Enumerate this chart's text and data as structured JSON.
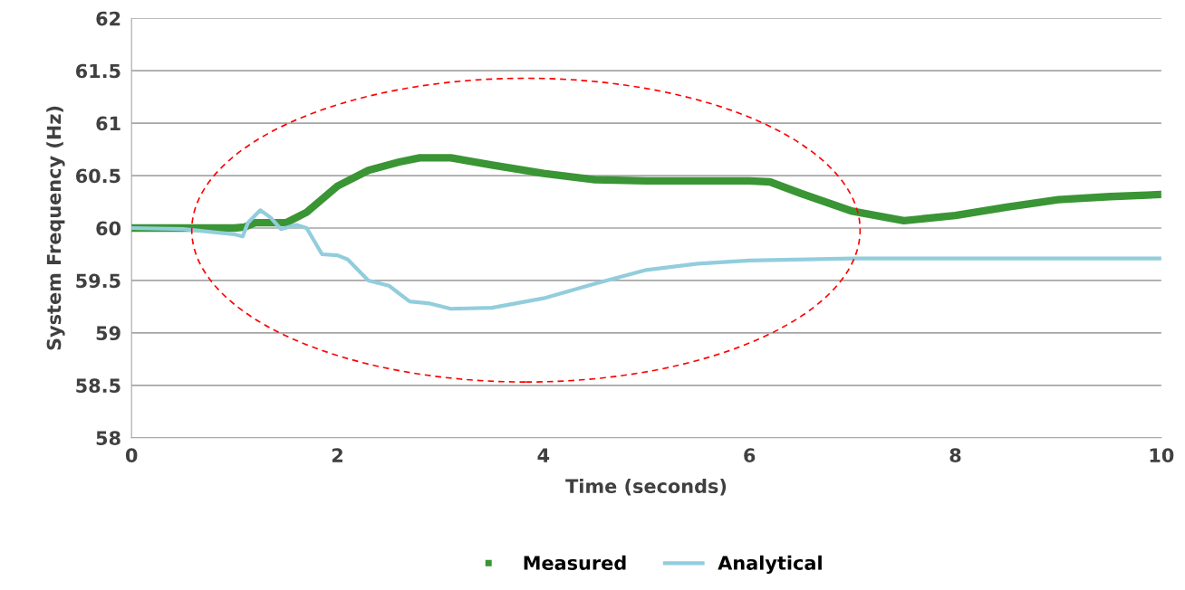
{
  "chart_data": {
    "type": "line",
    "xlabel": "Time (seconds)",
    "ylabel": "System Frequency (Hz)",
    "xlim": [
      0,
      10
    ],
    "xticks": [
      0,
      2,
      4,
      6,
      8,
      10
    ],
    "ylim": [
      58,
      62
    ],
    "yticks": [
      58,
      58.5,
      59,
      59.5,
      60,
      60.5,
      61,
      61.5,
      62
    ],
    "grid": "y",
    "legend": "bottom",
    "marker": "none",
    "line_style": "solid",
    "series": [
      {
        "name": "Measured",
        "color": "#3a9535",
        "x": [
          0,
          0.5,
          1.0,
          1.1,
          1.2,
          1.5,
          1.7,
          2.0,
          2.3,
          2.6,
          2.8,
          3.1,
          3.5,
          4.0,
          4.5,
          5.0,
          5.5,
          6.0,
          6.2,
          6.5,
          7.0,
          7.5,
          8.0,
          8.5,
          9.0,
          9.5,
          10
        ],
        "values": [
          60.0,
          60.0,
          60.0,
          60.01,
          60.05,
          60.05,
          60.15,
          60.4,
          60.55,
          60.63,
          60.67,
          60.67,
          60.6,
          60.52,
          60.46,
          60.45,
          60.45,
          60.45,
          60.44,
          60.33,
          60.16,
          60.07,
          60.12,
          60.2,
          60.27,
          60.3,
          60.32
        ]
      },
      {
        "name": "Analytical",
        "color": "#92cddc",
        "x": [
          0,
          0.5,
          1.0,
          1.08,
          1.13,
          1.25,
          1.35,
          1.45,
          1.6,
          1.7,
          1.85,
          2.0,
          2.1,
          2.3,
          2.5,
          2.7,
          2.9,
          3.1,
          3.5,
          4.0,
          4.5,
          5.0,
          5.5,
          6.0,
          7.0,
          8.0,
          9.0,
          10
        ],
        "values": [
          60.0,
          59.99,
          59.94,
          59.92,
          60.05,
          60.17,
          60.1,
          59.99,
          60.03,
          60.0,
          59.75,
          59.74,
          59.7,
          59.5,
          59.45,
          59.3,
          59.28,
          59.23,
          59.24,
          59.33,
          59.47,
          59.6,
          59.66,
          59.69,
          59.71,
          59.71,
          59.71,
          59.71
        ]
      }
    ]
  }
}
